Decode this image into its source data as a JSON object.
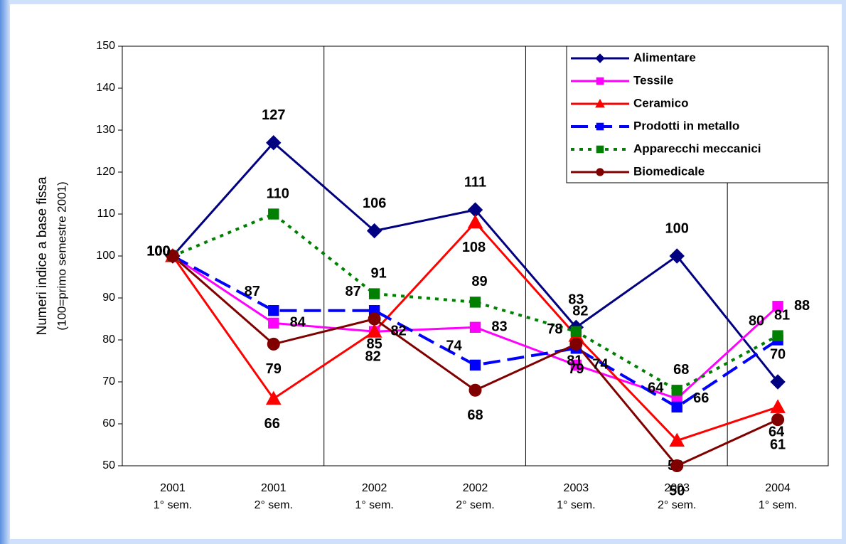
{
  "chart_data": {
    "type": "line",
    "ylabel": [
      "Numeri indice a base fissa",
      "(100=primo semestre 2001)"
    ],
    "categories": [
      [
        "2001",
        "1° sem."
      ],
      [
        "2001",
        "2° sem."
      ],
      [
        "2002",
        "1° sem."
      ],
      [
        "2002",
        "2° sem."
      ],
      [
        "2003",
        "1° sem."
      ],
      [
        "2003",
        "2° sem."
      ],
      [
        "2004",
        "1° sem."
      ]
    ],
    "ylim": [
      50,
      150
    ],
    "yticks": [
      50,
      60,
      70,
      80,
      90,
      100,
      110,
      120,
      130,
      140,
      150
    ],
    "legend": "upper right",
    "series": [
      {
        "name": "Alimentare",
        "color": "#000080",
        "marker": "diamond",
        "style": "solid",
        "values": [
          100,
          127,
          106,
          111,
          83,
          100,
          70
        ]
      },
      {
        "name": "Tessile",
        "color": "#ff00ff",
        "marker": "square",
        "style": "solid",
        "values": [
          100,
          84,
          82,
          83,
          74,
          66,
          88
        ]
      },
      {
        "name": "Ceramico",
        "color": "#ff0000",
        "marker": "triangle",
        "style": "solid",
        "values": [
          100,
          66,
          82,
          108,
          81,
          56,
          64
        ]
      },
      {
        "name": "Prodotti in  metallo",
        "color": "#0000ff",
        "marker": "square",
        "style": "dashed",
        "values": [
          100,
          87,
          87,
          74,
          78,
          64,
          80
        ]
      },
      {
        "name": "Apparecchi meccanici",
        "color": "#008000",
        "marker": "square",
        "style": "dotted",
        "values": [
          100,
          110,
          91,
          89,
          82,
          68,
          81
        ]
      },
      {
        "name": "Biomedicale",
        "color": "#800000",
        "marker": "circle",
        "style": "solid",
        "values": [
          100,
          79,
          85,
          68,
          79,
          50,
          61
        ]
      }
    ]
  }
}
